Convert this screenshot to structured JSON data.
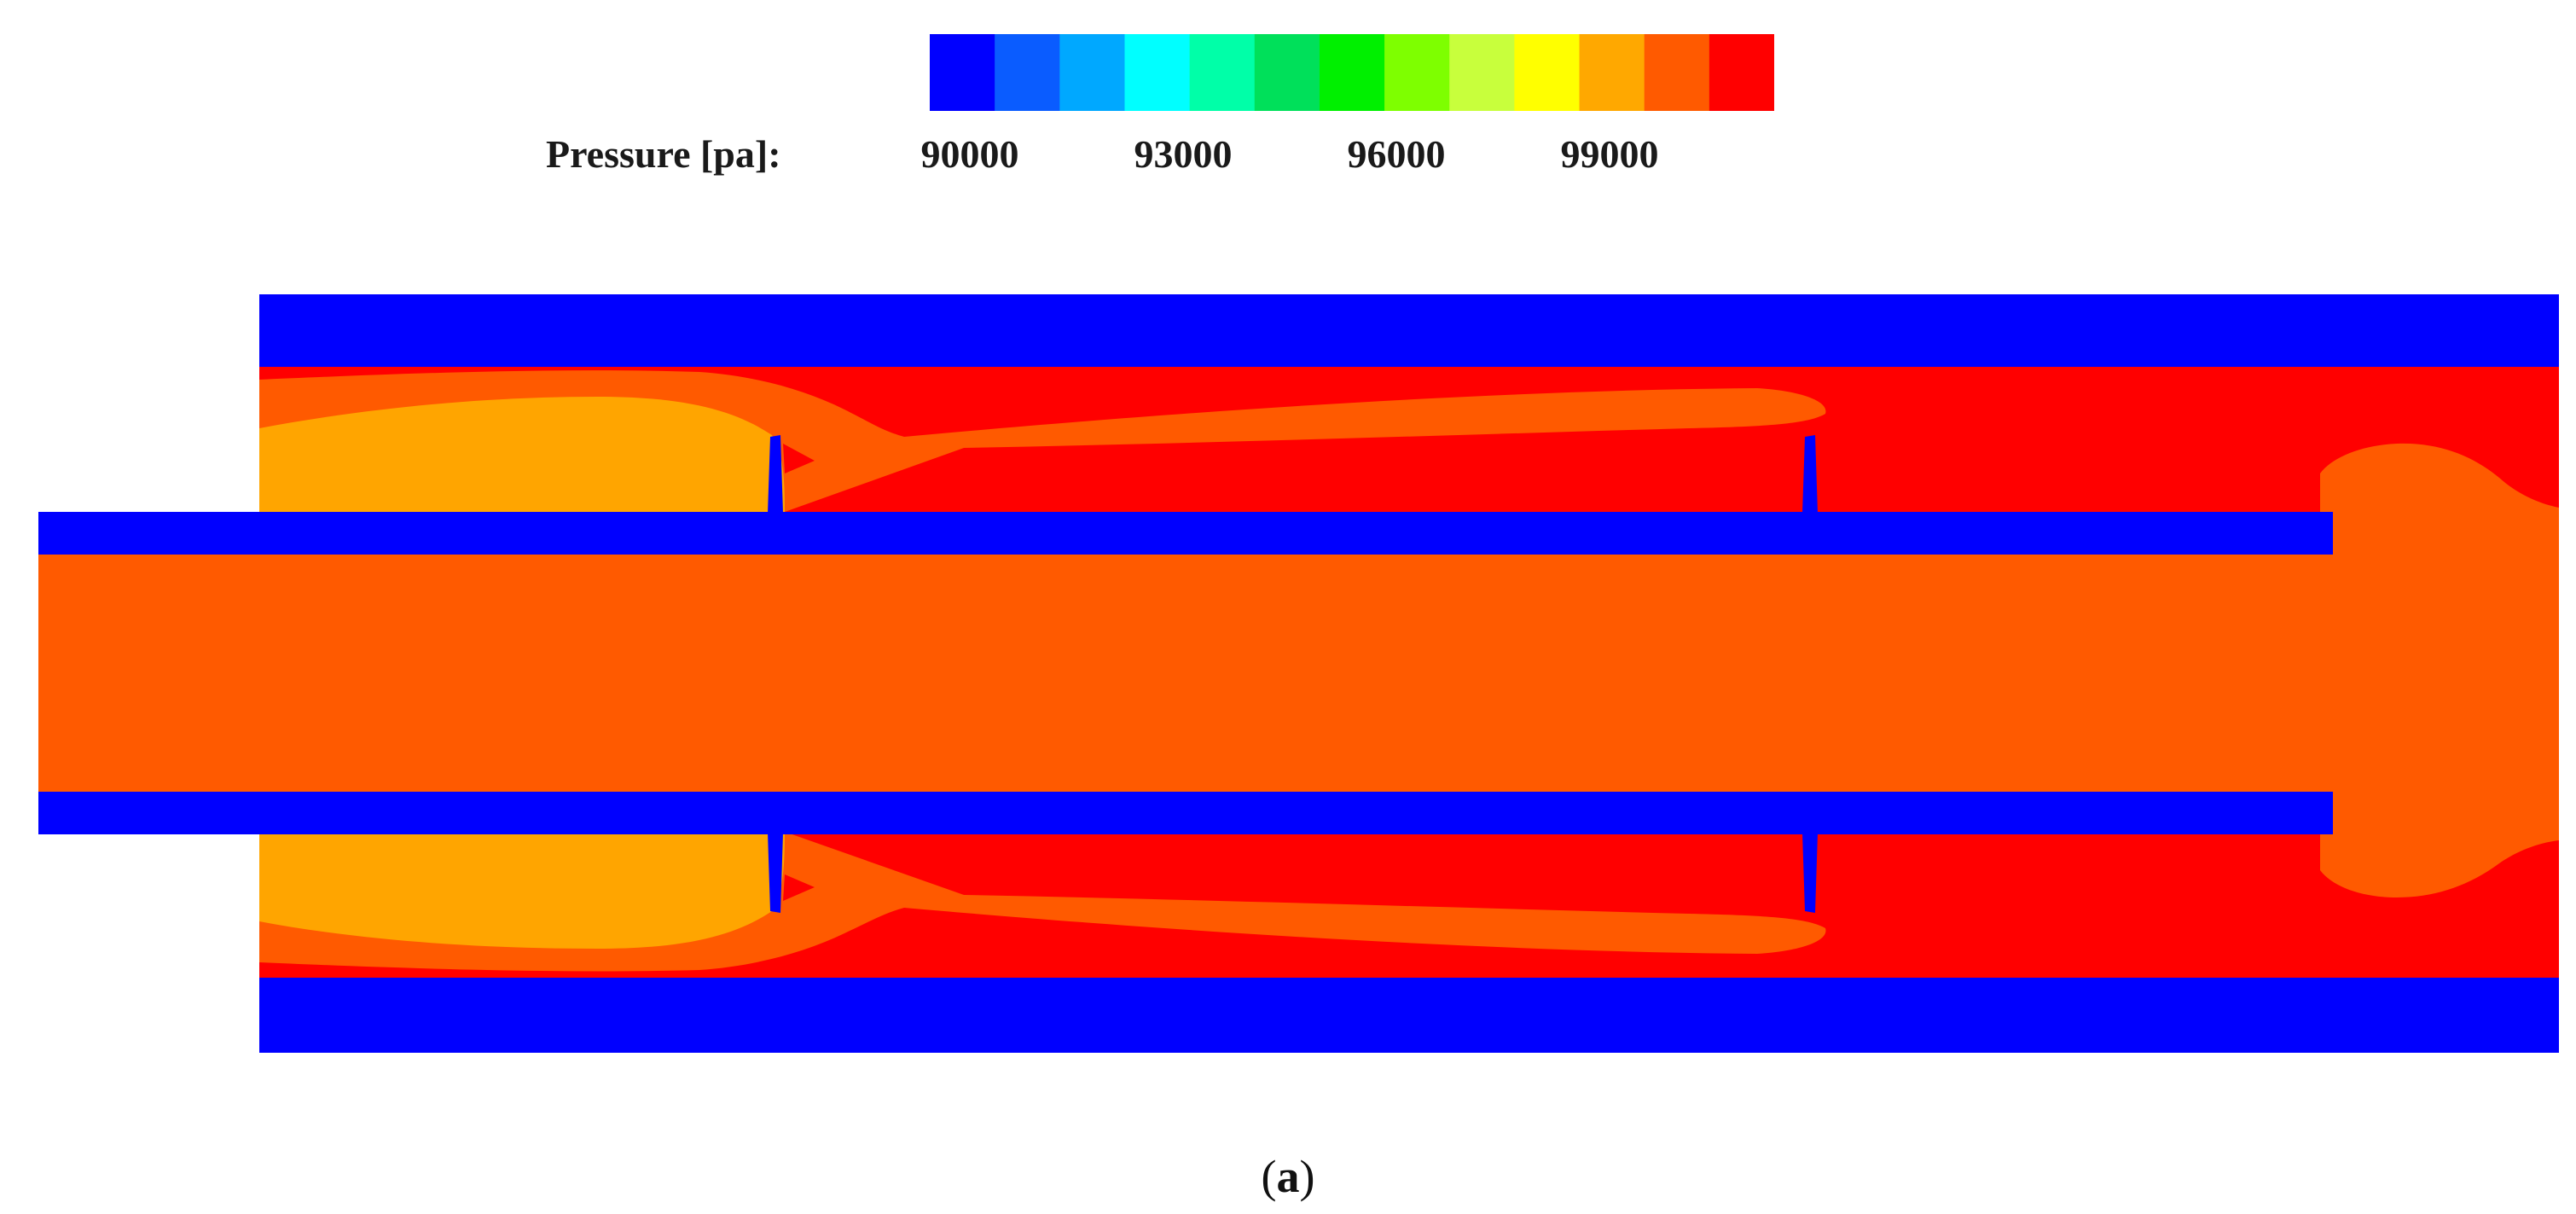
{
  "legend": {
    "title": "Pressure [pa]:",
    "tick_labels": [
      "90000",
      "93000",
      "96000",
      "99000"
    ],
    "colors": [
      "#0000ff",
      "#0a5cff",
      "#00a8ff",
      "#00ffff",
      "#00ffa8",
      "#00e05a",
      "#00f000",
      "#7eff00",
      "#c8ff3c",
      "#ffff00",
      "#ffa800",
      "#ff5a00",
      "#ff0000"
    ]
  },
  "caption": {
    "open": "(",
    "letter": "a",
    "close": ")"
  },
  "contour_colors": {
    "wall": "#0000ff",
    "red": "#ff0000",
    "orange_red": "#ff5a00",
    "orange": "#ffa500"
  }
}
